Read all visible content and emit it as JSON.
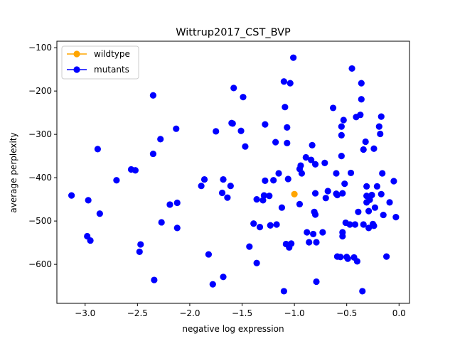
{
  "chart_data": {
    "type": "scatter",
    "title": "Wittrup2017_CST_BVP",
    "xlabel": "negative log expression",
    "ylabel": "average perplexity",
    "xlim": [
      -3.27,
      0.1
    ],
    "ylim": [
      -690,
      -85
    ],
    "xticks": [
      -3.0,
      -2.5,
      -2.0,
      -1.5,
      -1.0,
      -0.5,
      0.0
    ],
    "xtick_labels": [
      "−3.0",
      "−2.5",
      "−2.0",
      "−1.5",
      "−1.0",
      "−0.5",
      "0.0"
    ],
    "yticks": [
      -100,
      -200,
      -300,
      -400,
      -500,
      -600
    ],
    "ytick_labels": [
      "−100",
      "−200",
      "−300",
      "−400",
      "−500",
      "−600"
    ],
    "grid": false,
    "legend_position": "top-left",
    "series": [
      {
        "name": "wildtype",
        "color": "#ffa500",
        "points": [
          [
            -1.0,
            -438
          ]
        ]
      },
      {
        "name": "mutants",
        "color": "#0000ff",
        "points": [
          [
            -3.13,
            -441
          ],
          [
            -2.97,
            -452
          ],
          [
            -2.98,
            -535
          ],
          [
            -2.95,
            -545
          ],
          [
            -2.88,
            -334
          ],
          [
            -2.86,
            -483
          ],
          [
            -2.7,
            -406
          ],
          [
            -2.56,
            -381
          ],
          [
            -2.52,
            -383
          ],
          [
            -2.48,
            -571
          ],
          [
            -2.47,
            -554
          ],
          [
            -2.35,
            -210
          ],
          [
            -2.35,
            -345
          ],
          [
            -2.34,
            -636
          ],
          [
            -2.28,
            -311
          ],
          [
            -2.27,
            -503
          ],
          [
            -2.19,
            -462
          ],
          [
            -2.13,
            -287
          ],
          [
            -2.12,
            -458
          ],
          [
            -2.12,
            -516
          ],
          [
            -1.89,
            -419
          ],
          [
            -1.86,
            -404
          ],
          [
            -1.82,
            -577
          ],
          [
            -1.78,
            -646
          ],
          [
            -1.75,
            -293
          ],
          [
            -1.69,
            -435
          ],
          [
            -1.68,
            -404
          ],
          [
            -1.68,
            -629
          ],
          [
            -1.64,
            -446
          ],
          [
            -1.61,
            -419
          ],
          [
            -1.6,
            -274
          ],
          [
            -1.59,
            -275
          ],
          [
            -1.58,
            -193
          ],
          [
            -1.51,
            -292
          ],
          [
            -1.49,
            -214
          ],
          [
            -1.47,
            -328
          ],
          [
            -1.43,
            -559
          ],
          [
            -1.39,
            -506
          ],
          [
            -1.36,
            -450
          ],
          [
            -1.36,
            -597
          ],
          [
            -1.33,
            -514
          ],
          [
            -1.3,
            -452
          ],
          [
            -1.29,
            -441
          ],
          [
            -1.28,
            -407
          ],
          [
            -1.28,
            -277
          ],
          [
            -1.24,
            -442
          ],
          [
            -1.23,
            -510
          ],
          [
            -1.2,
            -406
          ],
          [
            -1.18,
            -318
          ],
          [
            -1.17,
            -508
          ],
          [
            -1.15,
            -390
          ],
          [
            -1.12,
            -469
          ],
          [
            -1.1,
            -178
          ],
          [
            -1.1,
            -662
          ],
          [
            -1.09,
            -237
          ],
          [
            -1.08,
            -553
          ],
          [
            -1.07,
            -320
          ],
          [
            -1.07,
            -284
          ],
          [
            -1.06,
            -403
          ],
          [
            -1.05,
            -561
          ],
          [
            -1.04,
            -182
          ],
          [
            -1.03,
            -552
          ],
          [
            -1.01,
            -123
          ],
          [
            -0.95,
            -461
          ],
          [
            -0.95,
            -380
          ],
          [
            -0.94,
            -372
          ],
          [
            -0.93,
            -390
          ],
          [
            -0.89,
            -353
          ],
          [
            -0.88,
            -526
          ],
          [
            -0.86,
            -549
          ],
          [
            -0.84,
            -359
          ],
          [
            -0.83,
            -325
          ],
          [
            -0.82,
            -530
          ],
          [
            -0.81,
            -479
          ],
          [
            -0.8,
            -485
          ],
          [
            -0.8,
            -369
          ],
          [
            -0.8,
            -436
          ],
          [
            -0.79,
            -640
          ],
          [
            -0.79,
            -549
          ],
          [
            -0.73,
            -526
          ],
          [
            -0.71,
            -366
          ],
          [
            -0.7,
            -447
          ],
          [
            -0.68,
            -431
          ],
          [
            -0.63,
            -239
          ],
          [
            -0.6,
            -390
          ],
          [
            -0.6,
            -437
          ],
          [
            -0.59,
            -440
          ],
          [
            -0.59,
            -582
          ],
          [
            -0.56,
            -583
          ],
          [
            -0.55,
            -302
          ],
          [
            -0.55,
            -282
          ],
          [
            -0.55,
            -350
          ],
          [
            -0.54,
            -526
          ],
          [
            -0.54,
            -535
          ],
          [
            -0.54,
            -436
          ],
          [
            -0.53,
            -267
          ],
          [
            -0.52,
            -414
          ],
          [
            -0.51,
            -504
          ],
          [
            -0.5,
            -583
          ],
          [
            -0.49,
            -587
          ],
          [
            -0.47,
            -508
          ],
          [
            -0.46,
            -389
          ],
          [
            -0.45,
            -148
          ],
          [
            -0.43,
            -584
          ],
          [
            -0.42,
            -508
          ],
          [
            -0.41,
            -260
          ],
          [
            -0.4,
            -593
          ],
          [
            -0.39,
            -479
          ],
          [
            -0.37,
            -255
          ],
          [
            -0.36,
            -219
          ],
          [
            -0.36,
            -182
          ],
          [
            -0.35,
            -662
          ],
          [
            -0.34,
            -508
          ],
          [
            -0.34,
            -335
          ],
          [
            -0.32,
            -317
          ],
          [
            -0.31,
            -420
          ],
          [
            -0.31,
            -442
          ],
          [
            -0.31,
            -457
          ],
          [
            -0.29,
            -477
          ],
          [
            -0.29,
            -516
          ],
          [
            -0.28,
            -451
          ],
          [
            -0.26,
            -440
          ],
          [
            -0.25,
            -507
          ],
          [
            -0.24,
            -511
          ],
          [
            -0.24,
            -333
          ],
          [
            -0.23,
            -469
          ],
          [
            -0.21,
            -420
          ],
          [
            -0.19,
            -282
          ],
          [
            -0.18,
            -299
          ],
          [
            -0.17,
            -438
          ],
          [
            -0.17,
            -259
          ],
          [
            -0.16,
            -390
          ],
          [
            -0.15,
            -486
          ],
          [
            -0.12,
            -582
          ],
          [
            -0.09,
            -457
          ],
          [
            -0.05,
            -408
          ],
          [
            -0.03,
            -491
          ]
        ]
      }
    ]
  }
}
